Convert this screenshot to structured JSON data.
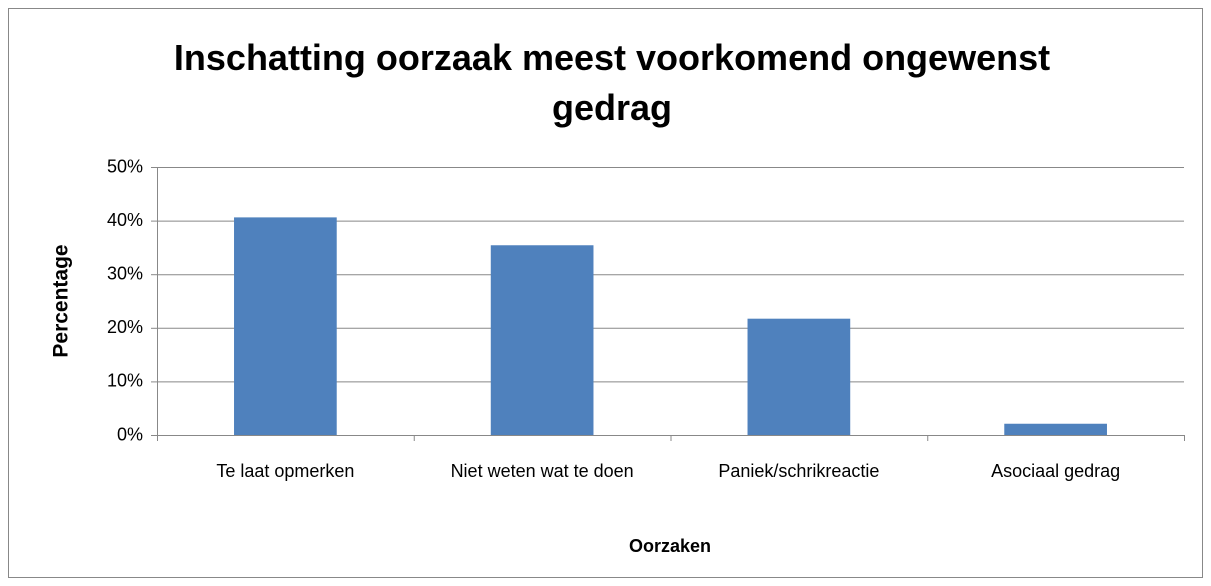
{
  "chart_data": {
    "type": "bar",
    "title": "Inschatting oorzaak meest voorkomend ongewenst gedrag",
    "x_label": "Oorzaken",
    "y_label": "Percentage",
    "categories": [
      "Te laat opmerken",
      "Niet weten wat te doen",
      "Paniek/schrikreactie",
      "Asociaal gedrag"
    ],
    "values": [
      40.6,
      35.4,
      21.7,
      2.1
    ],
    "color": "#4f81bd",
    "ylim": [
      0,
      50
    ],
    "yticks": [
      {
        "value": 0,
        "label": "0%"
      },
      {
        "value": 10,
        "label": "10%"
      },
      {
        "value": 20,
        "label": "20%"
      },
      {
        "value": 30,
        "label": "30%"
      },
      {
        "value": 40,
        "label": "40%"
      },
      {
        "value": 50,
        "label": "50%"
      }
    ],
    "grid": true
  }
}
